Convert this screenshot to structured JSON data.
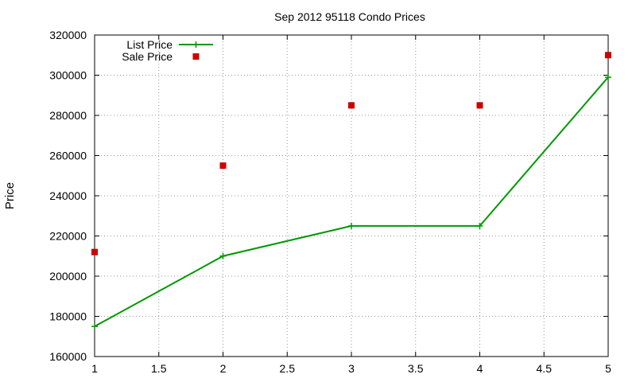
{
  "chart_data": {
    "type": "line",
    "title": "Sep 2012 95118 Condo Prices",
    "xlabel": "",
    "ylabel": "Price",
    "xlim": [
      1,
      5
    ],
    "ylim": [
      160000,
      320000
    ],
    "xticks": [
      "1",
      "1.5",
      "2",
      "2.5",
      "3",
      "3.5",
      "4",
      "4.5",
      "5"
    ],
    "yticks": [
      "160000",
      "180000",
      "200000",
      "220000",
      "240000",
      "260000",
      "280000",
      "300000",
      "320000"
    ],
    "grid": true,
    "legend_position": "top-left",
    "series": [
      {
        "name": "List Price",
        "style": "line+markers",
        "marker": "plus",
        "color": "#009900",
        "x": [
          1,
          2,
          3,
          4,
          5
        ],
        "y": [
          175000,
          210000,
          225000,
          225000,
          299000
        ]
      },
      {
        "name": "Sale Price",
        "style": "points",
        "marker": "square",
        "color": "#cc0000",
        "x": [
          1,
          2,
          3,
          4,
          5
        ],
        "y": [
          212000,
          255000,
          285000,
          285000,
          310000
        ]
      }
    ]
  }
}
